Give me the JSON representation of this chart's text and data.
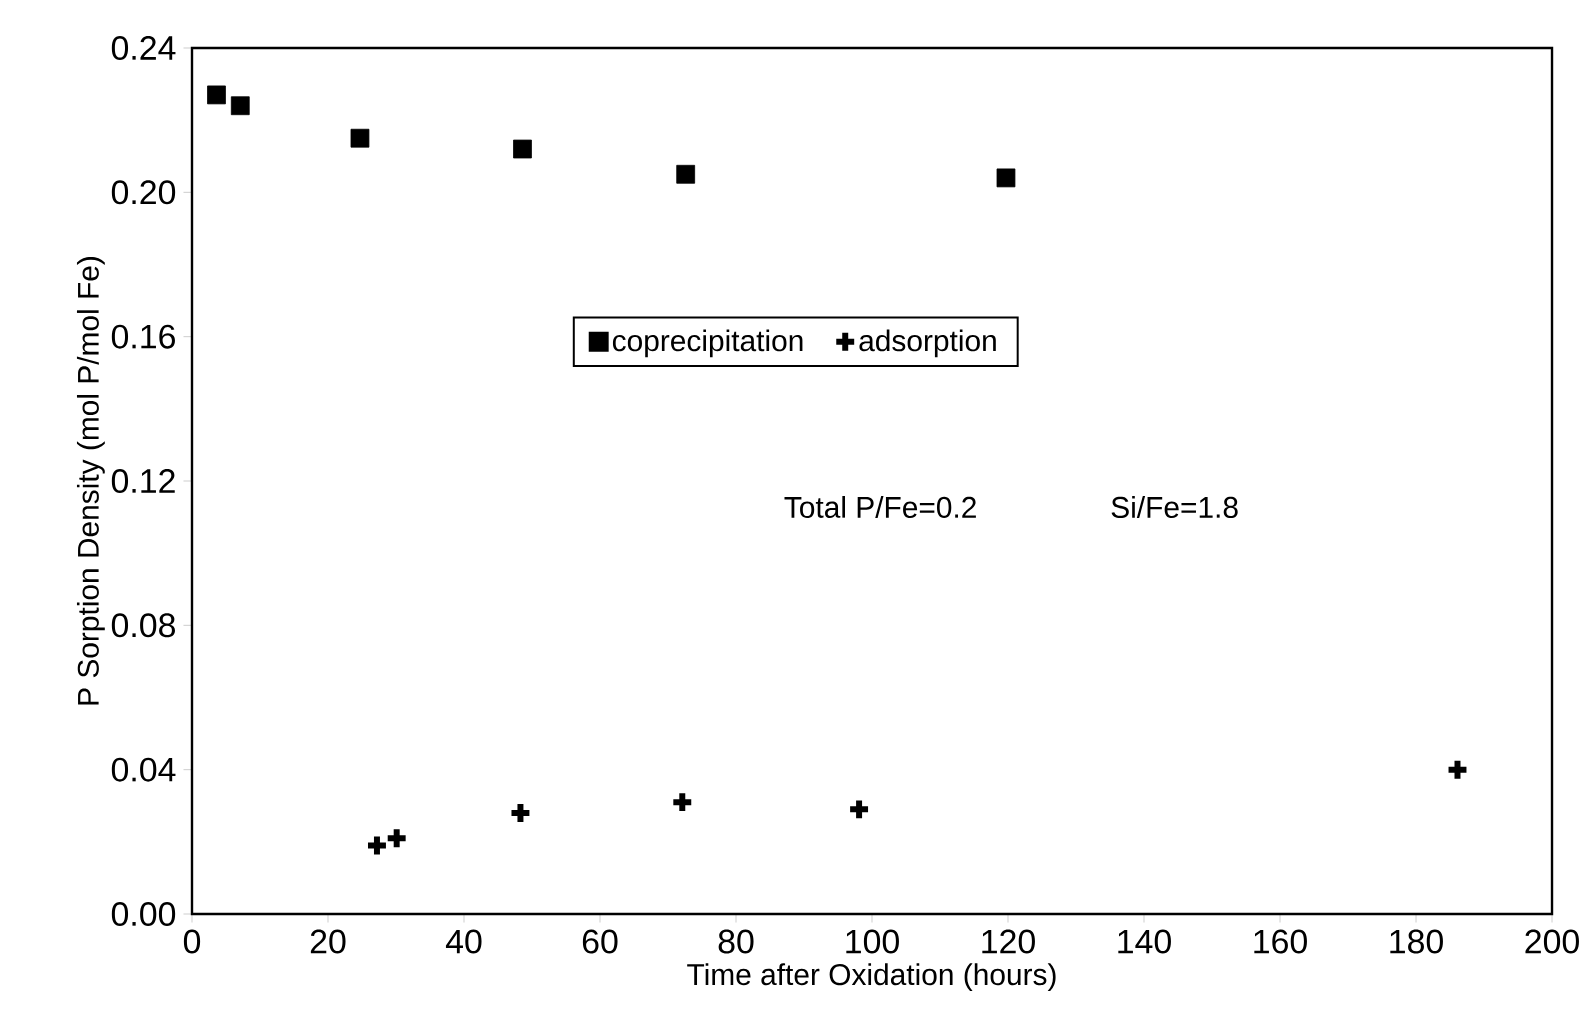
{
  "chart_data": {
    "type": "scatter",
    "xlabel": "Time after Oxidation (hours)",
    "ylabel": "P Sorption Density (mol P/mol Fe)",
    "xlim": [
      0,
      200
    ],
    "xticks": [
      0,
      20,
      40,
      60,
      80,
      100,
      120,
      140,
      160,
      180,
      200
    ],
    "ylim": [
      0,
      0.24
    ],
    "yticks": [
      {
        "value": 0,
        "label": "0.00"
      },
      0.04,
      0.08,
      0.12,
      0.16,
      {
        "value": 0.2,
        "label": "0.20"
      },
      0.24
    ],
    "grid": false,
    "legend": "center",
    "annotations": [
      "Total P/Fe=0.2",
      "Si/Fe=1.8"
    ],
    "series": [
      {
        "name": "coprecipitation",
        "color": "#000000",
        "marker": "square",
        "x": [
          3.6,
          7.1,
          24.7,
          48.6,
          72.6,
          119.7
        ],
        "values": [
          0.227,
          0.224,
          0.215,
          0.212,
          0.205,
          0.204
        ]
      },
      {
        "name": "adsorption",
        "color": "#000000",
        "marker": "cross",
        "x": [
          27.2,
          30.1,
          48.3,
          72.1,
          98.1,
          186.1
        ],
        "values": [
          0.019,
          0.021,
          0.028,
          0.031,
          0.029,
          0.04
        ]
      }
    ]
  }
}
